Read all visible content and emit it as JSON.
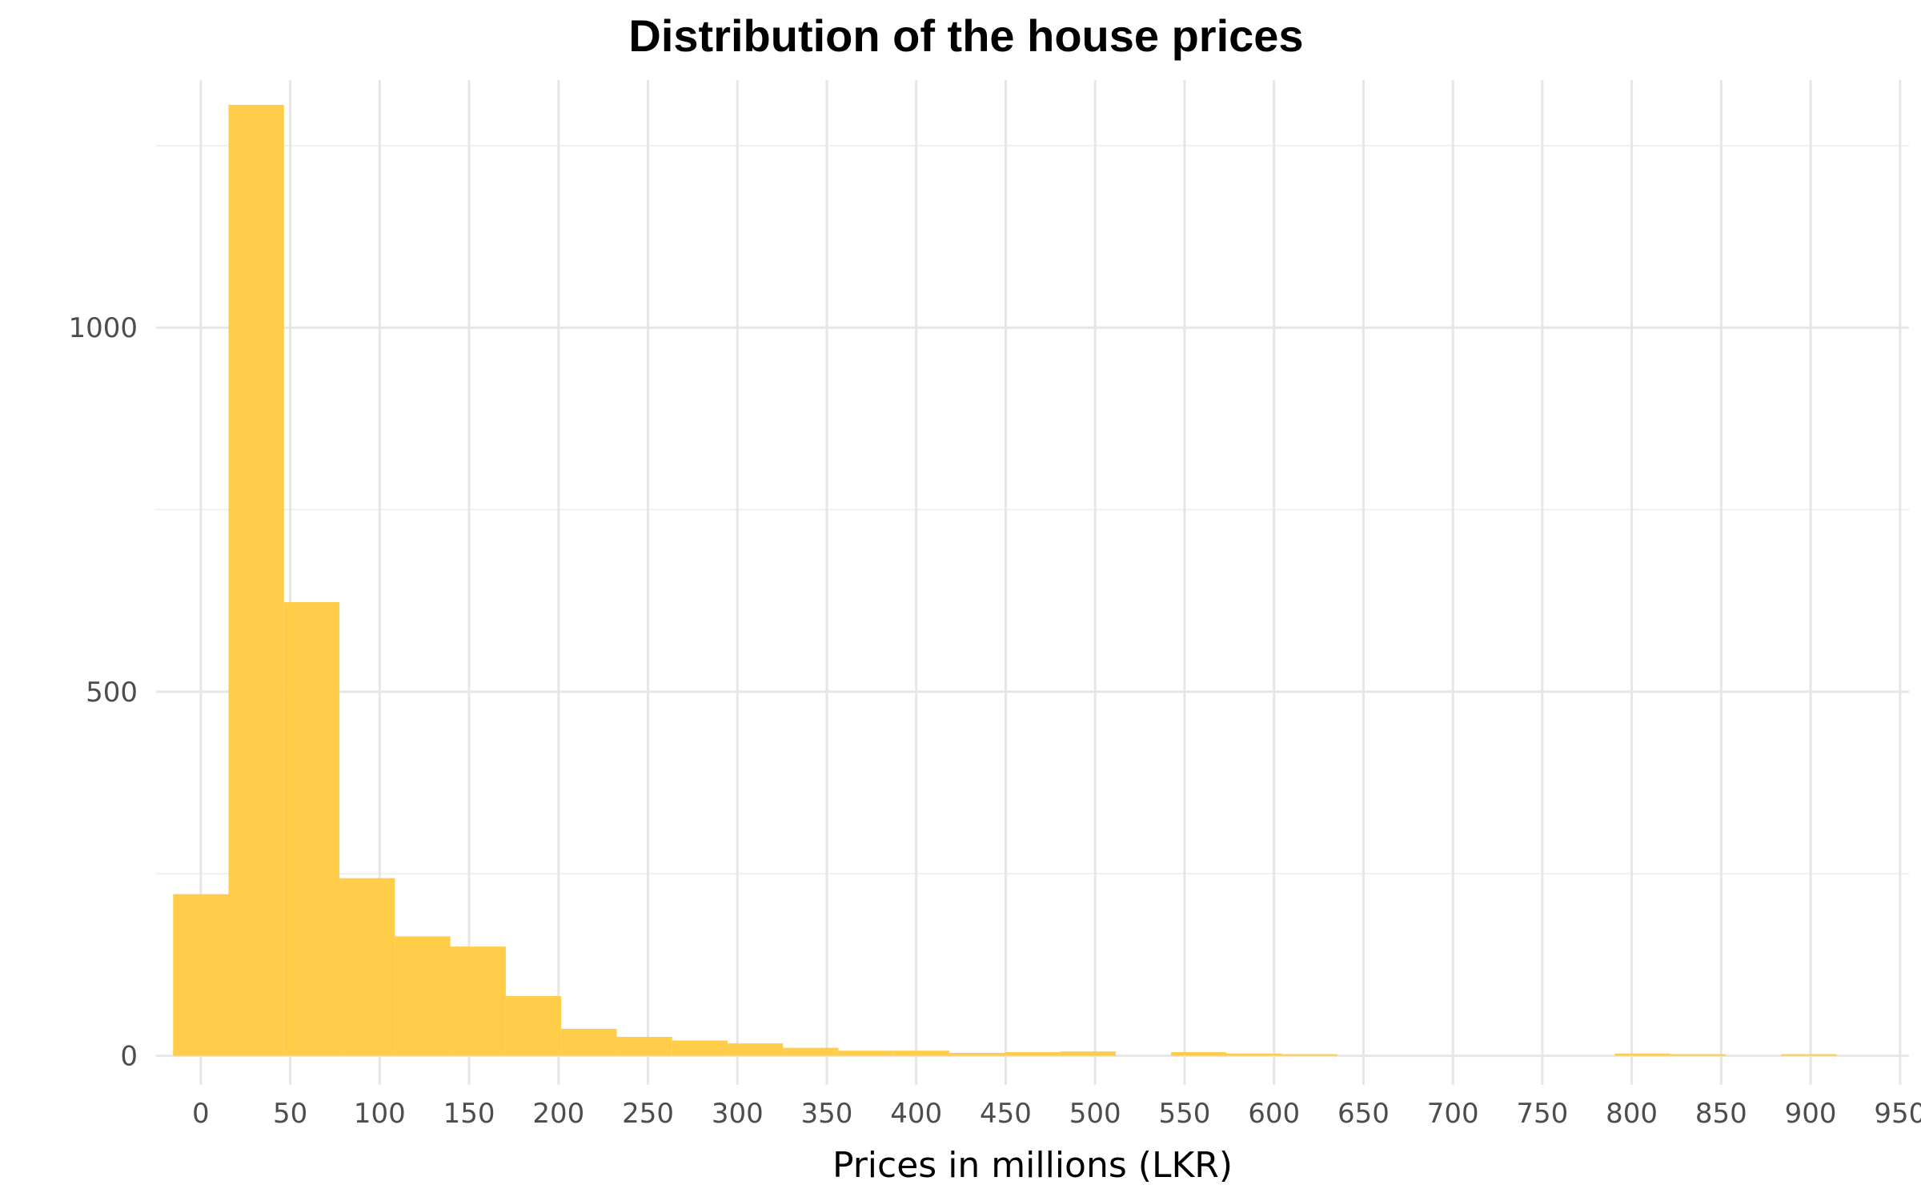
{
  "chart_data": {
    "type": "bar",
    "title": "Distribution of the house prices",
    "xlabel": "Prices in millions (LKR)",
    "ylabel": "",
    "bar_color": "#FFCD49",
    "grid": true,
    "xlim": [
      -25,
      955
    ],
    "ylim": [
      -40,
      1340
    ],
    "x_ticks": [
      0,
      50,
      100,
      150,
      200,
      250,
      300,
      350,
      400,
      450,
      500,
      550,
      600,
      650,
      700,
      750,
      800,
      850,
      900,
      950
    ],
    "y_ticks": [
      0,
      500,
      1000
    ],
    "bins": [
      {
        "start": -15.5,
        "end": 15.5,
        "count": 222
      },
      {
        "start": 15.5,
        "end": 46.5,
        "count": 1306
      },
      {
        "start": 46.5,
        "end": 77.5,
        "count": 623
      },
      {
        "start": 77.5,
        "end": 108.5,
        "count": 244
      },
      {
        "start": 108.5,
        "end": 139.5,
        "count": 164
      },
      {
        "start": 139.5,
        "end": 170.5,
        "count": 150
      },
      {
        "start": 170.5,
        "end": 201.5,
        "count": 82
      },
      {
        "start": 201.5,
        "end": 232.5,
        "count": 37
      },
      {
        "start": 232.5,
        "end": 263.5,
        "count": 26
      },
      {
        "start": 263.5,
        "end": 294.5,
        "count": 21
      },
      {
        "start": 294.5,
        "end": 325.5,
        "count": 17
      },
      {
        "start": 325.5,
        "end": 356.5,
        "count": 11
      },
      {
        "start": 356.5,
        "end": 387.5,
        "count": 7
      },
      {
        "start": 387.5,
        "end": 418.5,
        "count": 7
      },
      {
        "start": 418.5,
        "end": 449.5,
        "count": 4
      },
      {
        "start": 449.5,
        "end": 480.5,
        "count": 5
      },
      {
        "start": 480.5,
        "end": 511.5,
        "count": 6
      },
      {
        "start": 511.5,
        "end": 542.5,
        "count": 0
      },
      {
        "start": 542.5,
        "end": 573.5,
        "count": 5
      },
      {
        "start": 573.5,
        "end": 604.5,
        "count": 3
      },
      {
        "start": 604.5,
        "end": 635.5,
        "count": 1
      },
      {
        "start": 635.5,
        "end": 666.5,
        "count": 0
      },
      {
        "start": 666.5,
        "end": 697.5,
        "count": 0
      },
      {
        "start": 697.5,
        "end": 728.5,
        "count": 0
      },
      {
        "start": 728.5,
        "end": 759.5,
        "count": 0
      },
      {
        "start": 759.5,
        "end": 790.5,
        "count": 0
      },
      {
        "start": 790.5,
        "end": 821.5,
        "count": 3
      },
      {
        "start": 821.5,
        "end": 852.5,
        "count": 2
      },
      {
        "start": 852.5,
        "end": 883.5,
        "count": 0
      },
      {
        "start": 883.5,
        "end": 914.5,
        "count": 1
      }
    ]
  }
}
